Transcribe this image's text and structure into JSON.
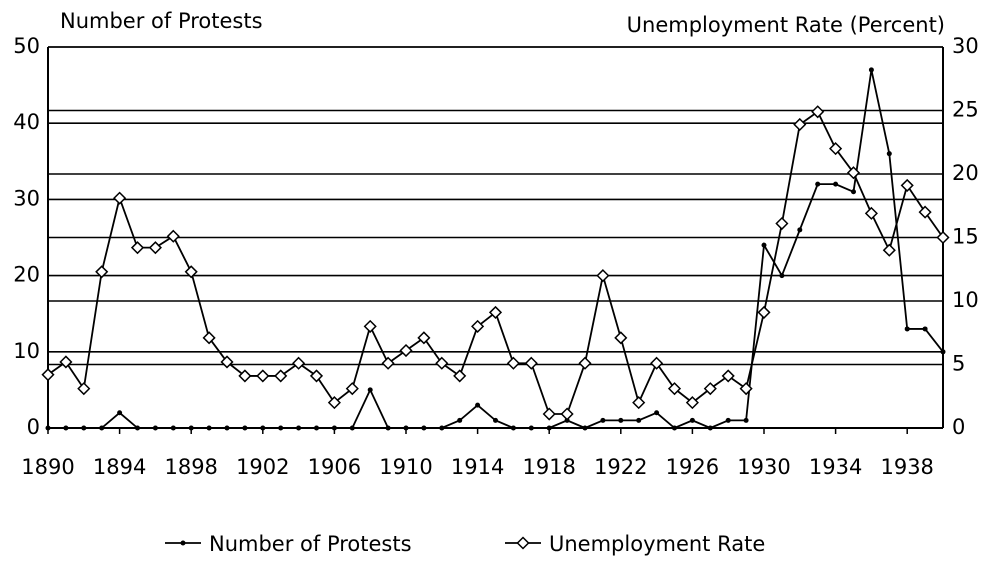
{
  "chart_data": {
    "type": "line",
    "y_label": "Number of Protests",
    "y2_label": "Unemployment Rate (Percent)",
    "x": [
      1890,
      1891,
      1892,
      1893,
      1894,
      1895,
      1896,
      1897,
      1898,
      1899,
      1900,
      1901,
      1902,
      1903,
      1904,
      1905,
      1906,
      1907,
      1908,
      1909,
      1910,
      1911,
      1912,
      1913,
      1914,
      1915,
      1916,
      1917,
      1918,
      1919,
      1920,
      1921,
      1922,
      1923,
      1924,
      1925,
      1926,
      1927,
      1928,
      1929,
      1930,
      1931,
      1932,
      1933,
      1934,
      1935,
      1936,
      1937,
      1938,
      1939,
      1940
    ],
    "xlim": [
      1890,
      1940
    ],
    "xticks": [
      1890,
      1894,
      1898,
      1902,
      1906,
      1910,
      1914,
      1918,
      1922,
      1926,
      1930,
      1934,
      1938
    ],
    "ylim": [
      0,
      50
    ],
    "yticks": [
      0,
      10,
      20,
      30,
      40,
      50
    ],
    "y2lim": [
      0,
      30
    ],
    "y2ticks": [
      0,
      5,
      10,
      15,
      20,
      25,
      30
    ],
    "grid": true,
    "legend": "bottom",
    "series": [
      {
        "name": "Number of Protests",
        "color": "#000000",
        "marker": "dot",
        "values": [
          0,
          0,
          0,
          0,
          2,
          0,
          0,
          0,
          0,
          0,
          0,
          0,
          0,
          0,
          0,
          0,
          0,
          0,
          5,
          0,
          0,
          0,
          0,
          1,
          3,
          1,
          0,
          0,
          0,
          1,
          0,
          1,
          1,
          1,
          2,
          0,
          1,
          0,
          1,
          1,
          24,
          20,
          26,
          32,
          32,
          31,
          47,
          36,
          13,
          13,
          10
        ]
      },
      {
        "name": "Unemployment Rate",
        "color": "#000000",
        "marker": "diamond",
        "axis": "y2",
        "values": [
          4.2,
          5.2,
          3.1,
          12.3,
          18.1,
          14.2,
          14.2,
          15.1,
          12.3,
          7.1,
          5.2,
          4.1,
          4.1,
          4.1,
          5.1,
          4.1,
          2.0,
          3.1,
          8.0,
          5.1,
          6.1,
          7.1,
          5.1,
          4.1,
          8.0,
          9.1,
          5.1,
          5.1,
          1.1,
          1.1,
          5.1,
          12.0,
          7.1,
          2.0,
          5.1,
          3.1,
          2.0,
          3.1,
          4.1,
          3.1,
          9.1,
          16.1,
          23.9,
          24.9,
          22.0,
          20.1,
          16.9,
          14.0,
          19.1,
          17.0,
          15.0
        ]
      }
    ]
  }
}
